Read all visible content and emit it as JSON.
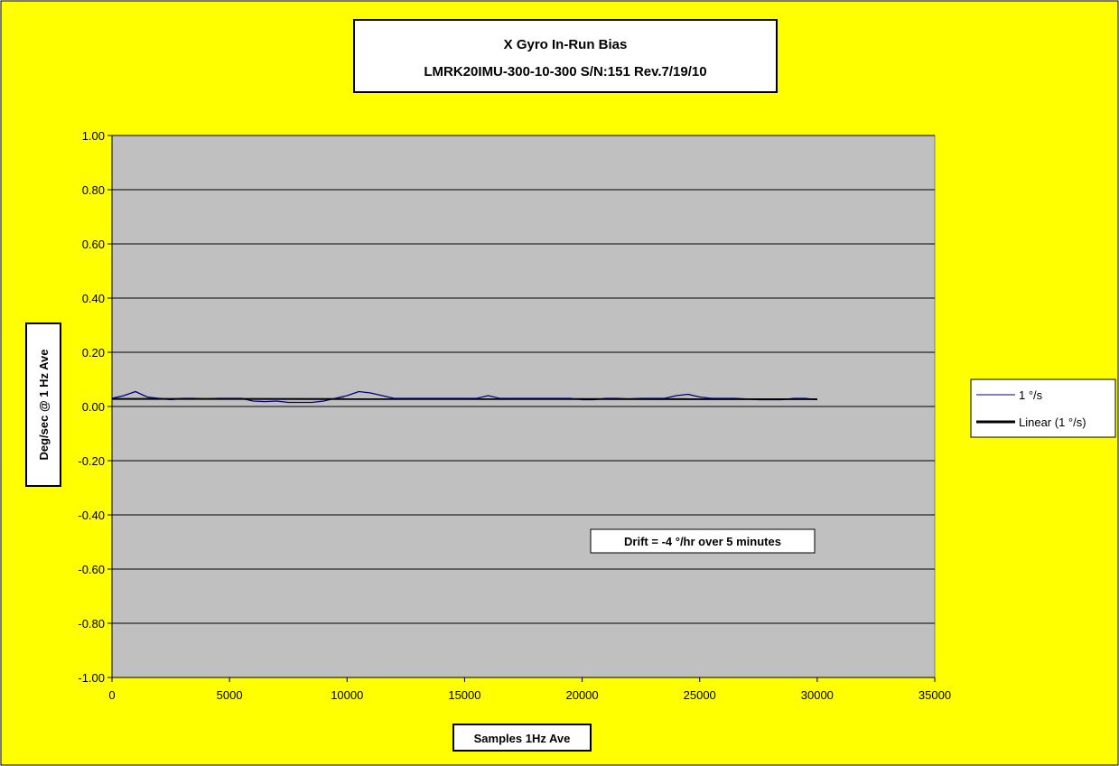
{
  "colors": {
    "chart_area": "#ffff00",
    "plot_area": "#c0c0c0",
    "series_line": "#000080",
    "trend_line": "#000000",
    "gridline": "#000000"
  },
  "chart_data": {
    "type": "line",
    "title": [
      "X Gyro In-Run Bias",
      "LMRK20IMU-300-10-300 S/N:151 Rev.7/19/10"
    ],
    "xlabel": "Samples 1Hz Ave",
    "ylabel": "Deg/sec @ 1 Hz Ave",
    "xlim": [
      0,
      35000
    ],
    "ylim": [
      -1.0,
      1.0
    ],
    "x_ticks": [
      0,
      5000,
      10000,
      15000,
      20000,
      25000,
      30000,
      35000
    ],
    "x_tick_labels": [
      "0",
      "5000",
      "10000",
      "15000",
      "20000",
      "25000",
      "30000",
      "35000"
    ],
    "y_ticks": [
      1.0,
      0.8,
      0.6,
      0.4,
      0.2,
      0.0,
      -0.2,
      -0.4,
      -0.6,
      -0.8,
      -1.0
    ],
    "y_tick_labels": [
      "1.00",
      "0.80",
      "0.60",
      "0.40",
      "0.20",
      "0.00",
      "-0.20",
      "-0.40",
      "-0.60",
      "-0.80",
      "-1.00"
    ],
    "grid": "horizontal major",
    "legend_position": "right",
    "series": [
      {
        "name": "1 °/s",
        "x": [
          0,
          500,
          1000,
          1500,
          2000,
          2500,
          3000,
          3500,
          4000,
          4500,
          5000,
          5500,
          6000,
          6500,
          7000,
          7500,
          8000,
          8500,
          9000,
          9500,
          10000,
          10500,
          11000,
          11500,
          12000,
          12500,
          13000,
          13500,
          14000,
          14500,
          15000,
          15500,
          16000,
          16500,
          17000,
          17500,
          18000,
          18500,
          19000,
          19500,
          20000,
          20500,
          21000,
          21500,
          22000,
          22500,
          23000,
          23500,
          24000,
          24500,
          25000,
          25500,
          26000,
          26500,
          27000,
          27500,
          28000,
          28500,
          29000,
          29500,
          30000
        ],
        "y": [
          0.03,
          0.04,
          0.055,
          0.035,
          0.03,
          0.025,
          0.03,
          0.03,
          0.028,
          0.03,
          0.03,
          0.03,
          0.02,
          0.018,
          0.02,
          0.015,
          0.015,
          0.015,
          0.02,
          0.03,
          0.04,
          0.055,
          0.05,
          0.04,
          0.03,
          0.03,
          0.03,
          0.03,
          0.03,
          0.03,
          0.03,
          0.03,
          0.04,
          0.03,
          0.03,
          0.03,
          0.03,
          0.03,
          0.03,
          0.03,
          0.025,
          0.025,
          0.03,
          0.03,
          0.028,
          0.03,
          0.03,
          0.03,
          0.04,
          0.045,
          0.035,
          0.03,
          0.03,
          0.03,
          0.028,
          0.025,
          0.025,
          0.025,
          0.03,
          0.03,
          0.025
        ]
      },
      {
        "name": "Linear (1 °/s)",
        "x": [
          0,
          30000
        ],
        "y": [
          0.028,
          0.027
        ]
      }
    ],
    "annotations": [
      {
        "text": "Drift = -4 °/hr over 5 minutes",
        "x": 21500,
        "y": -0.51
      }
    ]
  }
}
